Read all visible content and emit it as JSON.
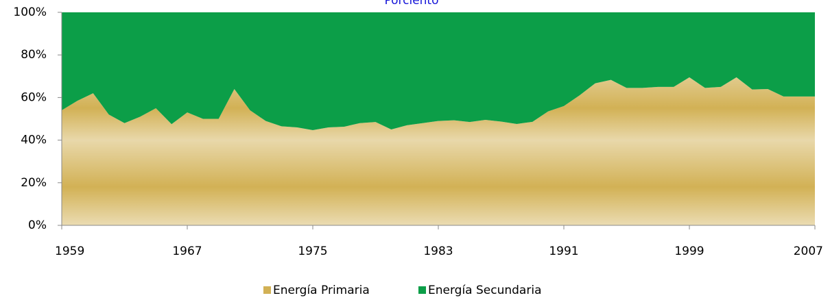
{
  "chart_data": {
    "type": "stacked_area",
    "title": "Porciento",
    "x": [
      1959,
      1960,
      1961,
      1962,
      1963,
      1964,
      1965,
      1966,
      1967,
      1968,
      1969,
      1970,
      1971,
      1972,
      1973,
      1974,
      1975,
      1976,
      1977,
      1978,
      1979,
      1980,
      1981,
      1982,
      1983,
      1984,
      1985,
      1986,
      1987,
      1988,
      1989,
      1990,
      1991,
      1992,
      1993,
      1994,
      1995,
      1996,
      1997,
      1998,
      1999,
      2000,
      2001,
      2002,
      2003,
      2004,
      2005,
      2006,
      2007
    ],
    "series": [
      {
        "name": "Energía Primaria",
        "color": "#d2b155",
        "values": [
          54,
          58.5,
          62,
          52,
          48,
          51,
          55,
          47.5,
          53,
          50,
          50,
          64,
          54,
          49,
          46.5,
          46,
          44.7,
          46,
          46.3,
          48,
          48.5,
          45,
          47,
          48,
          49,
          49.3,
          48.5,
          49.5,
          48.7,
          47.6,
          48.6,
          53.5,
          56,
          61,
          66.7,
          68.3,
          64.5,
          64.5,
          65,
          65,
          69.5,
          64.5,
          65,
          69.5,
          63.8,
          64,
          60.5,
          60.5,
          60.5
        ]
      },
      {
        "name": "Energía Secundaria",
        "color": "#0c9e48",
        "values": [
          46,
          41.5,
          38,
          48,
          52,
          49,
          45,
          52.5,
          47,
          50,
          50,
          36,
          46,
          51,
          53.5,
          54,
          55.3,
          54,
          53.7,
          52,
          51.5,
          55,
          53,
          52,
          51,
          50.7,
          51.5,
          50.5,
          51.3,
          52.4,
          51.4,
          46.5,
          44,
          39,
          33.3,
          31.7,
          35.5,
          35.5,
          35,
          35,
          30.5,
          35.5,
          35,
          30.5,
          36.2,
          36,
          39.5,
          39.5,
          39.5
        ]
      }
    ],
    "xlim": [
      1959,
      2007
    ],
    "xticks": [
      1959,
      1967,
      1975,
      1983,
      1991,
      1999,
      2007
    ],
    "ylim": [
      0,
      100
    ],
    "yticks": [
      {
        "value": 0,
        "label": "0%"
      },
      {
        "value": 20,
        "label": "20%"
      },
      {
        "value": 40,
        "label": "40%"
      },
      {
        "value": 60,
        "label": "60%"
      },
      {
        "value": 80,
        "label": "80%"
      },
      {
        "value": 100,
        "label": "100%"
      }
    ],
    "legend": "bottom"
  }
}
